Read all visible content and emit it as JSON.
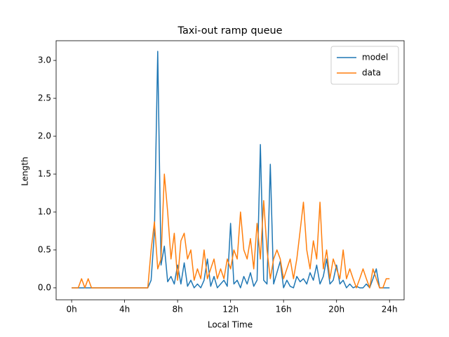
{
  "chart_data": {
    "type": "line",
    "title": "Taxi-out ramp queue",
    "x_label": "Local Time",
    "y_label": "Length",
    "x": [
      0,
      0.25,
      0.5,
      0.75,
      1,
      1.25,
      1.5,
      1.75,
      2,
      2.25,
      2.5,
      2.75,
      3,
      3.25,
      3.5,
      3.75,
      4,
      4.25,
      4.5,
      4.75,
      5,
      5.25,
      5.5,
      5.75,
      6,
      6.25,
      6.5,
      6.75,
      7,
      7.25,
      7.5,
      7.75,
      8,
      8.25,
      8.5,
      8.75,
      9,
      9.25,
      9.5,
      9.75,
      10,
      10.25,
      10.5,
      10.75,
      11,
      11.25,
      11.5,
      11.75,
      12,
      12.25,
      12.5,
      12.75,
      13,
      13.25,
      13.5,
      13.75,
      14,
      14.25,
      14.5,
      14.75,
      15,
      15.25,
      15.5,
      15.75,
      16,
      16.25,
      16.5,
      16.75,
      17,
      17.25,
      17.5,
      17.75,
      18,
      18.25,
      18.5,
      18.75,
      19,
      19.25,
      19.5,
      19.75,
      20,
      20.25,
      20.5,
      20.75,
      21,
      21.25,
      21.5,
      21.75,
      22,
      22.25,
      22.5,
      22.75,
      23,
      23.25,
      23.5,
      23.75,
      24
    ],
    "series": [
      {
        "name": "model",
        "color": "#1f77b4",
        "values": [
          0,
          0,
          0,
          0,
          0,
          0,
          0,
          0,
          0,
          0,
          0,
          0,
          0,
          0,
          0,
          0,
          0,
          0,
          0,
          0,
          0,
          0,
          0,
          0,
          0.1,
          0.74,
          3.12,
          0.3,
          0.55,
          0.08,
          0.15,
          0.05,
          0.3,
          0.05,
          0.33,
          0.02,
          0.1,
          0,
          0.05,
          0,
          0.1,
          0.38,
          0.02,
          0.15,
          0,
          0.05,
          0.1,
          0.02,
          0.85,
          0.05,
          0.1,
          0,
          0.15,
          0.05,
          0.2,
          0.02,
          0.1,
          1.89,
          0.1,
          0.05,
          1.63,
          0.05,
          0.2,
          0.35,
          0,
          0.1,
          0.02,
          0,
          0.15,
          0.08,
          0.12,
          0.05,
          0.2,
          0.1,
          0.3,
          0.05,
          0.15,
          0.38,
          0.05,
          0.1,
          0.3,
          0.05,
          0.1,
          0,
          0.05,
          0,
          0.02,
          0,
          0,
          0.05,
          0,
          0.12,
          0.25,
          0,
          0,
          0,
          0
        ]
      },
      {
        "name": "data",
        "color": "#ff7f0e",
        "values": [
          0,
          0,
          0,
          0.12,
          0,
          0.12,
          0,
          0,
          0,
          0,
          0,
          0,
          0,
          0,
          0,
          0,
          0,
          0,
          0,
          0,
          0,
          0,
          0,
          0,
          0.5,
          0.87,
          0.25,
          0.38,
          1.5,
          1.0,
          0.38,
          0.72,
          0.1,
          0.62,
          0.72,
          0.38,
          0.5,
          0.1,
          0.25,
          0.12,
          0.5,
          0.12,
          0.25,
          0.38,
          0.12,
          0.25,
          0.12,
          0.38,
          0.25,
          0.5,
          0.38,
          1.0,
          0.5,
          0.38,
          0.65,
          0.25,
          0.85,
          0.38,
          1.15,
          0.5,
          0.12,
          0.38,
          0.5,
          0.38,
          0.12,
          0.25,
          0.38,
          0.12,
          0.38,
          0.75,
          1.13,
          0.5,
          0.25,
          0.62,
          0.38,
          1.13,
          0.25,
          0.5,
          0.12,
          0.38,
          0.25,
          0.12,
          0.5,
          0.12,
          0.25,
          0.12,
          0,
          0.12,
          0.25,
          0.12,
          0,
          0.25,
          0.12,
          0,
          0,
          0.12,
          0.12
        ]
      }
    ],
    "xlim": [
      -1.17,
      25.1
    ],
    "ylim": [
      -0.158,
      3.26
    ],
    "xticks": [
      {
        "value": 0,
        "label": "0h"
      },
      {
        "value": 4,
        "label": "4h"
      },
      {
        "value": 8,
        "label": "8h"
      },
      {
        "value": 12,
        "label": "12h"
      },
      {
        "value": 16,
        "label": "16h"
      },
      {
        "value": 20,
        "label": "20h"
      },
      {
        "value": 24,
        "label": "24h"
      }
    ],
    "yticks": [
      {
        "value": 0,
        "label": "0.0"
      },
      0.5,
      {
        "value": 1,
        "label": "1.0"
      },
      1.5,
      {
        "value": 2,
        "label": "2.0"
      },
      2.5,
      {
        "value": 3,
        "label": "3.0"
      }
    ],
    "legend": "upper right"
  }
}
